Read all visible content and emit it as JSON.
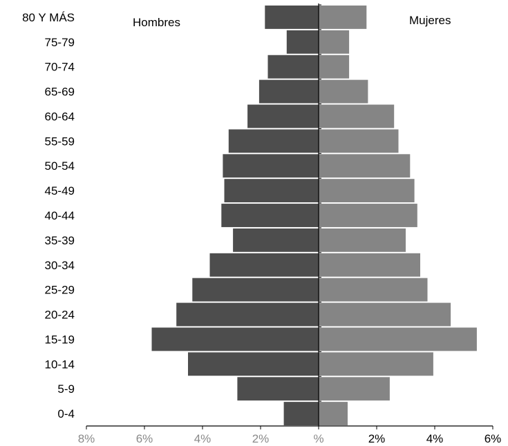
{
  "chart_data": {
    "type": "bar",
    "orientation": "horizontal",
    "categories": [
      "0-4",
      "5-9",
      "10-14",
      "15-19",
      "20-24",
      "25-29",
      "30-34",
      "35-39",
      "40-44",
      "45-49",
      "50-54",
      "55-59",
      "60-64",
      "65-69",
      "70-74",
      "75-79",
      "80 Y MÁS"
    ],
    "series": [
      {
        "name": "Hombres",
        "side": "left",
        "color": "#4d4d4d",
        "values": [
          1.2,
          2.8,
          4.5,
          5.75,
          4.9,
          4.35,
          3.75,
          2.95,
          3.35,
          3.25,
          3.3,
          3.1,
          2.45,
          2.05,
          1.75,
          1.1,
          1.85
        ]
      },
      {
        "name": "Mujeres",
        "side": "right",
        "color": "#858585",
        "values": [
          1.0,
          2.45,
          3.95,
          5.45,
          4.55,
          3.75,
          3.5,
          3.0,
          3.4,
          3.3,
          3.15,
          2.75,
          2.6,
          1.7,
          1.05,
          1.05,
          1.65
        ]
      }
    ],
    "x_ticks": [
      "8%",
      "6%",
      "4%",
      "2%",
      "%",
      "2%",
      "4%",
      "6%"
    ],
    "xlim": [
      -8,
      6
    ],
    "grid": false,
    "legend": "top (inline labels)"
  }
}
